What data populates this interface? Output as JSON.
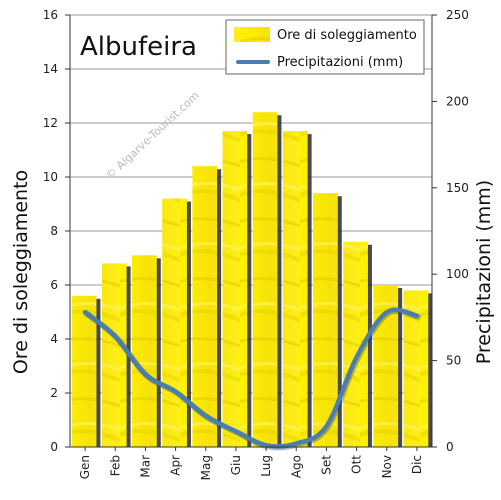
{
  "chart_data": {
    "type": "bar",
    "title": "Albufeira",
    "watermark": "© Algarve-Tourist.com",
    "categories": [
      "Gen",
      "Feb",
      "Mar",
      "Apr",
      "Mag",
      "Giu",
      "Lug",
      "Ago",
      "Set",
      "Ott",
      "Nov",
      "Dic"
    ],
    "series": [
      {
        "name": "Ore di soleggiamento",
        "type": "bar",
        "axis": "left",
        "color": "#ffee00",
        "values": [
          5.6,
          6.8,
          7.1,
          9.2,
          10.4,
          11.7,
          12.4,
          11.7,
          9.4,
          7.6,
          6.0,
          5.8
        ]
      },
      {
        "name": "Precipitazioni (mm)",
        "type": "line",
        "axis": "right",
        "color": "#4a7db0",
        "values": [
          78,
          64,
          42,
          32,
          18,
          9,
          1,
          2,
          12,
          52,
          78,
          76
        ]
      }
    ],
    "ylabel_left": "Ore di soleggiamento",
    "ylabel_right": "Precipitazioni (mm)",
    "ylim_left": [
      0,
      16
    ],
    "ylim_right": [
      0,
      250
    ],
    "yticks_left": [
      "0",
      "2",
      "4",
      "6",
      "8",
      "10",
      "12",
      "14",
      "16"
    ],
    "yticks_right": [
      "0",
      "50",
      "100",
      "150",
      "200",
      "250"
    ],
    "grid": true,
    "legend_position": "top-right"
  }
}
